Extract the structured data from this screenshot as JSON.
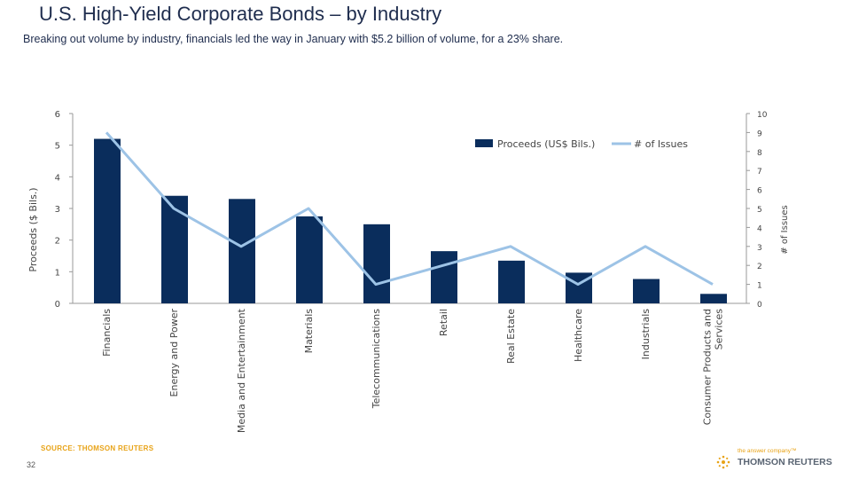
{
  "slide": {
    "title": "U.S. High-Yield Corporate Bonds – by Industry",
    "subtitle": "Breaking out volume by industry, financials led the way in January with $5.2 billion of volume, for a 23% share.",
    "source": "SOURCE: THOMSON REUTERS",
    "page_number": "32",
    "logo_tagline": "the answer company™",
    "logo_name": "THOMSON REUTERS"
  },
  "colors": {
    "bar": "#0a2d5c",
    "line": "#9dc3e6",
    "axis_text": "#444444",
    "grid": "#cccccc"
  },
  "chart_data": {
    "type": "bar",
    "categories": [
      "Financials",
      "Energy and Power",
      "Media and Entertainment",
      "Materials",
      "Telecommunications",
      "Retail",
      "Real Estate",
      "Healthcare",
      "Industrials",
      "Consumer Products and Services"
    ],
    "series": [
      {
        "name": "Proceeds (US$ Bils.)",
        "type": "bar",
        "axis": "left",
        "values": [
          5.2,
          3.4,
          3.3,
          2.75,
          2.5,
          1.65,
          1.35,
          0.97,
          0.77,
          0.3
        ]
      },
      {
        "name": "# of Issues",
        "type": "line",
        "axis": "right",
        "values": [
          9,
          5,
          3,
          5,
          1,
          2,
          3,
          1,
          3,
          1
        ]
      }
    ],
    "ylabel": "Proceeds ($ Bils.)",
    "y2label": "# of Issues",
    "ylim": [
      0,
      6
    ],
    "y2lim": [
      0,
      10
    ],
    "y_ticks": [
      "0",
      "1",
      "2",
      "3",
      "4",
      "5",
      "6"
    ],
    "y2_ticks": [
      "0",
      "1",
      "2",
      "3",
      "4",
      "5",
      "6",
      "7",
      "8",
      "9",
      "10"
    ],
    "legend_position": "top-right"
  }
}
